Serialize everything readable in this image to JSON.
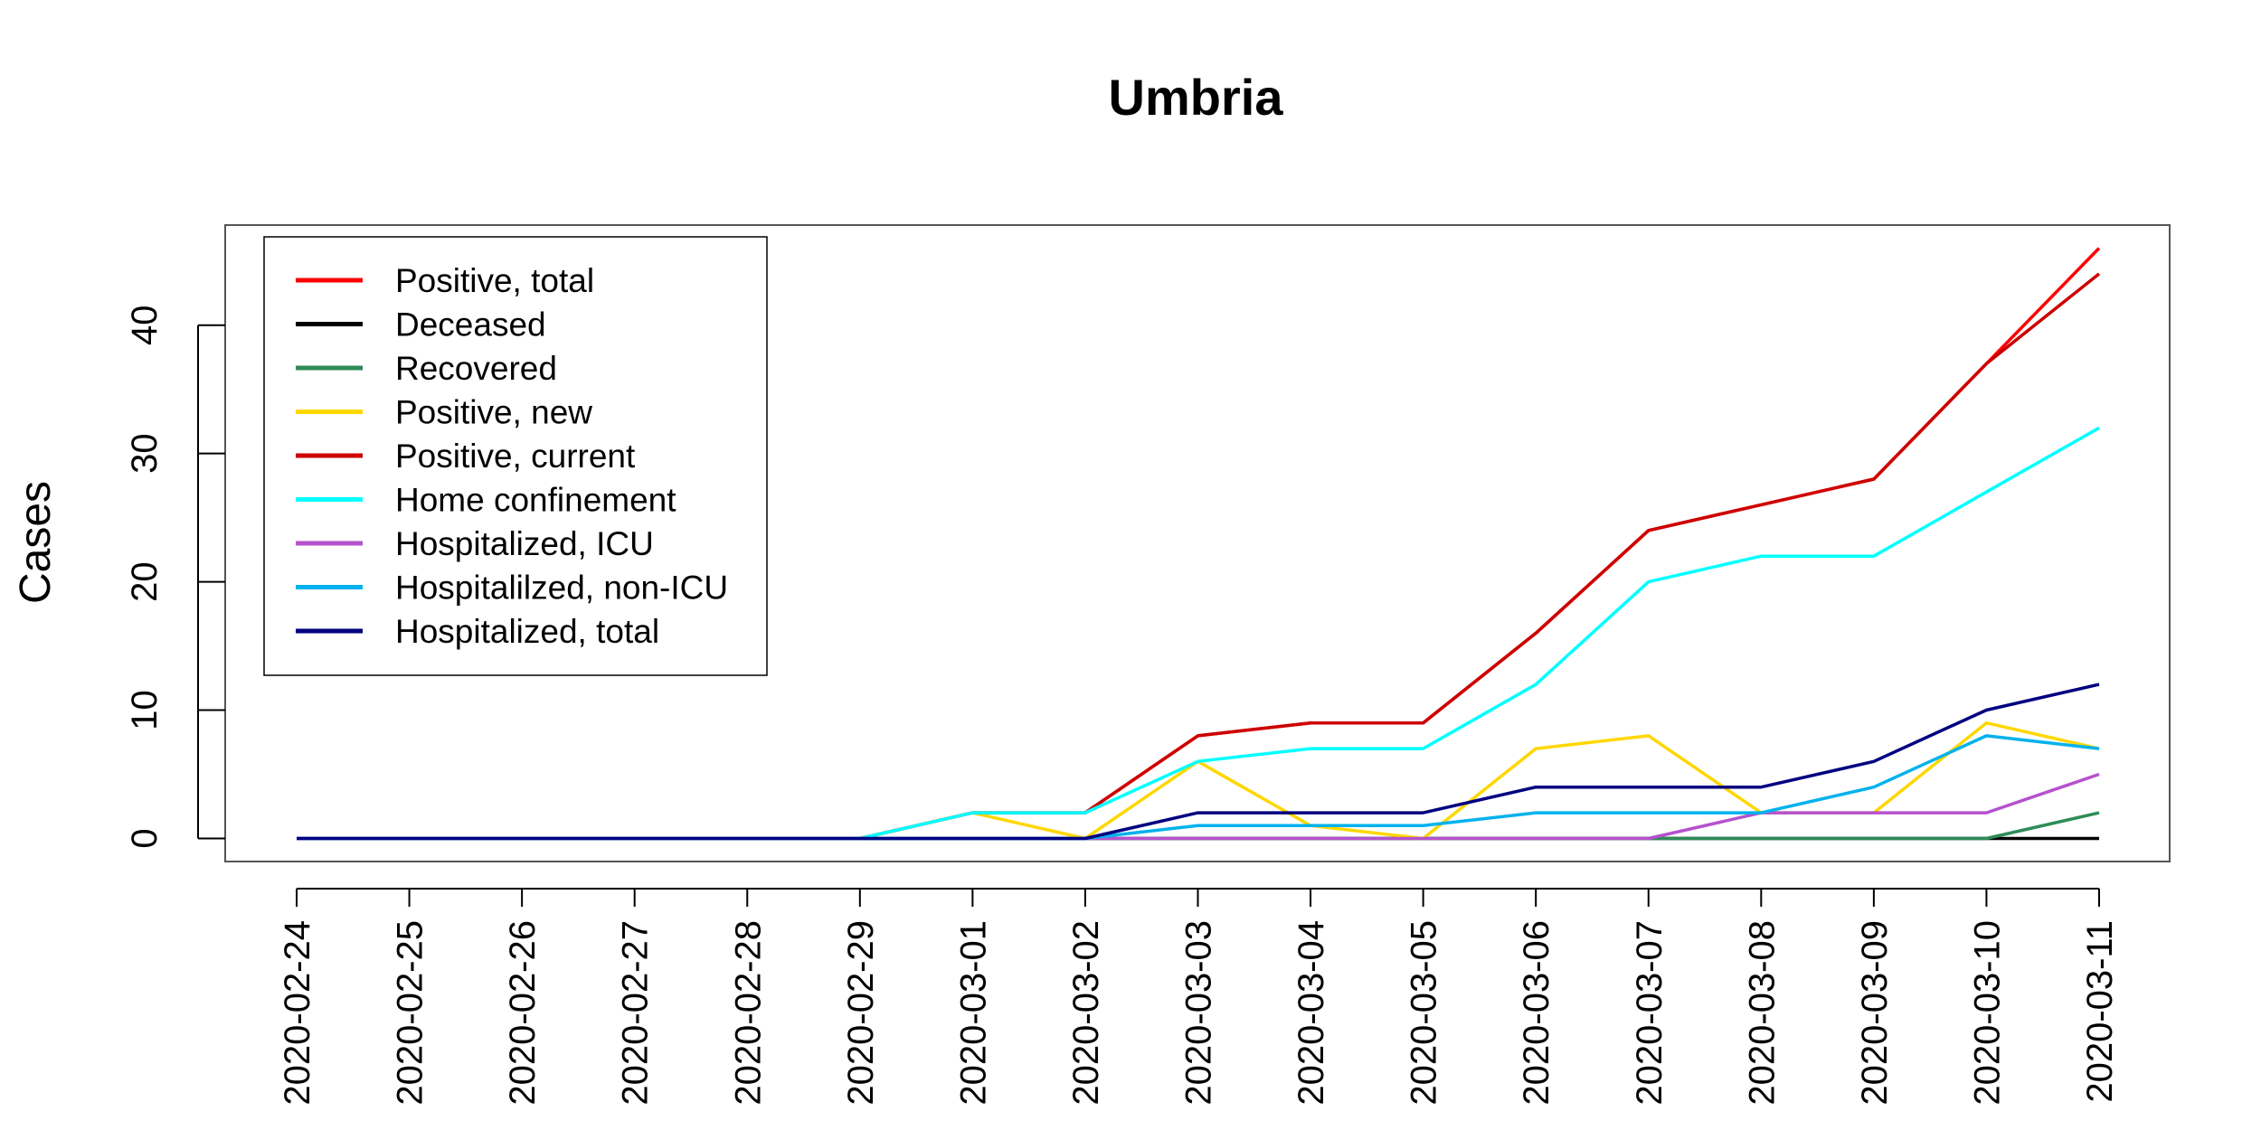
{
  "chart_data": {
    "type": "line",
    "title": "Umbria",
    "xlabel": "",
    "ylabel": "Cases",
    "x": [
      "2020-02-24",
      "2020-02-25",
      "2020-02-26",
      "2020-02-27",
      "2020-02-28",
      "2020-02-29",
      "2020-03-01",
      "2020-03-02",
      "2020-03-03",
      "2020-03-04",
      "2020-03-05",
      "2020-03-06",
      "2020-03-07",
      "2020-03-08",
      "2020-03-09",
      "2020-03-10",
      "2020-03-11"
    ],
    "ylim": [
      -1.8,
      47.8
    ],
    "yticks": [
      0,
      10,
      20,
      30,
      40
    ],
    "grid": false,
    "legend_position": "top-left",
    "series": [
      {
        "name": "Positive, total",
        "color": "#ff0000",
        "values": [
          0,
          0,
          0,
          0,
          0,
          0,
          2,
          2,
          8,
          9,
          9,
          16,
          24,
          26,
          28,
          37,
          46
        ]
      },
      {
        "name": "Deceased",
        "color": "#000000",
        "values": [
          0,
          0,
          0,
          0,
          0,
          0,
          0,
          0,
          0,
          0,
          0,
          0,
          0,
          0,
          0,
          0,
          0
        ]
      },
      {
        "name": "Recovered",
        "color": "#2e8b57",
        "values": [
          0,
          0,
          0,
          0,
          0,
          0,
          0,
          0,
          0,
          0,
          0,
          0,
          0,
          0,
          0,
          0,
          2
        ]
      },
      {
        "name": "Positive, new",
        "color": "#ffd700",
        "values": [
          0,
          0,
          0,
          0,
          0,
          0,
          2,
          0,
          6,
          1,
          0,
          7,
          8,
          2,
          2,
          9,
          7
        ]
      },
      {
        "name": "Positive, current",
        "color": "#cd0000",
        "values": [
          0,
          0,
          0,
          0,
          0,
          0,
          2,
          2,
          8,
          9,
          9,
          16,
          24,
          26,
          28,
          37,
          44
        ]
      },
      {
        "name": "Home confinement",
        "color": "#00ffff",
        "values": [
          0,
          0,
          0,
          0,
          0,
          0,
          2,
          2,
          6,
          7,
          7,
          12,
          20,
          22,
          22,
          27,
          32
        ]
      },
      {
        "name": "Hospitalized, ICU",
        "color": "#b452cd",
        "values": [
          0,
          0,
          0,
          0,
          0,
          0,
          0,
          0,
          0,
          0,
          0,
          0,
          0,
          2,
          2,
          2,
          5
        ]
      },
      {
        "name": "Hospitalilzed, non-ICU",
        "color": "#00b2ee",
        "values": [
          0,
          0,
          0,
          0,
          0,
          0,
          0,
          0,
          1,
          1,
          1,
          2,
          2,
          2,
          4,
          8,
          7
        ]
      },
      {
        "name": "Hospitalized, total",
        "color": "#000080",
        "values": [
          0,
          0,
          0,
          0,
          0,
          0,
          0,
          0,
          2,
          2,
          2,
          4,
          4,
          4,
          6,
          10,
          12
        ]
      }
    ]
  }
}
